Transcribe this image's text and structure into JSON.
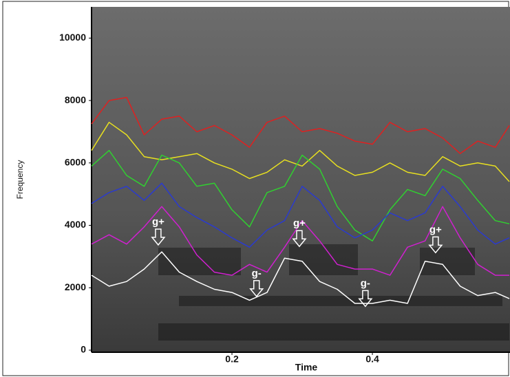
{
  "chart_data": {
    "type": "line",
    "x_label": "Time",
    "y_label": "Frequency",
    "x": [
      0,
      0.025,
      0.05,
      0.075,
      0.1,
      0.125,
      0.15,
      0.175,
      0.2,
      0.225,
      0.25,
      0.275,
      0.3,
      0.325,
      0.35,
      0.375,
      0.4,
      0.425,
      0.45,
      0.475,
      0.5,
      0.525,
      0.55,
      0.575,
      0.595
    ],
    "series": [
      {
        "color": "#e02020",
        "values": [
          7250,
          8000,
          8100,
          6900,
          7400,
          7500,
          7000,
          7200,
          6900,
          6500,
          7300,
          7500,
          7000,
          7100,
          6950,
          6700,
          6600,
          7300,
          7000,
          7100,
          6800,
          6300,
          6700,
          6500,
          7200
        ]
      },
      {
        "color": "#e8e020",
        "values": [
          6400,
          7300,
          6900,
          6200,
          6100,
          6200,
          6300,
          6000,
          5800,
          5500,
          5700,
          6100,
          5900,
          6400,
          5900,
          5600,
          5700,
          6000,
          5700,
          5600,
          6200,
          5900,
          6000,
          5900,
          5400
        ]
      },
      {
        "color": "#30d030",
        "values": [
          5900,
          6400,
          5600,
          5250,
          6250,
          6000,
          5250,
          5350,
          4500,
          3950,
          5050,
          5250,
          6250,
          5800,
          4600,
          3850,
          3500,
          4500,
          5150,
          4950,
          5800,
          5500,
          4800,
          4150,
          4050
        ]
      },
      {
        "color": "#2a3ad0",
        "values": [
          4700,
          5050,
          5250,
          4800,
          5350,
          4600,
          4250,
          3950,
          3600,
          3300,
          3850,
          4150,
          5250,
          4800,
          3950,
          3600,
          3850,
          4400,
          4150,
          4400,
          5250,
          4600,
          3850,
          3400,
          3600
        ]
      },
      {
        "color": "#d020d0",
        "values": [
          3400,
          3700,
          3400,
          3950,
          4600,
          3950,
          3050,
          2500,
          2400,
          2750,
          2500,
          3300,
          4150,
          3500,
          2750,
          2600,
          2600,
          2400,
          3300,
          3500,
          4600,
          3600,
          2750,
          2400,
          2400
        ]
      },
      {
        "color": "#ffffff",
        "values": [
          2400,
          2050,
          2200,
          2600,
          3150,
          2500,
          2200,
          1950,
          1850,
          1600,
          1850,
          2950,
          2850,
          2200,
          1950,
          1500,
          1500,
          1600,
          1500,
          2850,
          2750,
          2050,
          1750,
          1850,
          1650
        ]
      }
    ],
    "annotations": [
      {
        "text": "g+",
        "x": 0.095,
        "y": 4100
      },
      {
        "text": "g-",
        "x": 0.235,
        "y": 2450
      },
      {
        "text": "g+",
        "x": 0.296,
        "y": 4050
      },
      {
        "text": "g-",
        "x": 0.39,
        "y": 2130
      },
      {
        "text": "g+",
        "x": 0.49,
        "y": 3850
      }
    ],
    "xlim": [
      0,
      0.596
    ],
    "ylim": [
      0,
      11000
    ],
    "xticks": [
      0.2,
      0.4
    ],
    "yticks": [
      0,
      2000,
      4000,
      6000,
      8000,
      10000
    ]
  }
}
